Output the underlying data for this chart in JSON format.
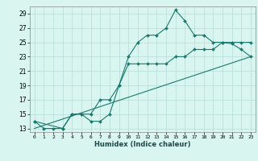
{
  "xlabel": "Humidex (Indice chaleur)",
  "background_color": "#d8f5f0",
  "grid_color": "#b8dcd8",
  "line_color": "#1a7a6e",
  "xlim": [
    -0.5,
    23.5
  ],
  "ylim": [
    12.5,
    30.0
  ],
  "yticks": [
    13,
    15,
    17,
    19,
    21,
    23,
    25,
    27,
    29
  ],
  "xticks": [
    0,
    1,
    2,
    3,
    4,
    5,
    6,
    7,
    8,
    9,
    10,
    11,
    12,
    13,
    14,
    15,
    16,
    17,
    18,
    19,
    20,
    21,
    22,
    23
  ],
  "line1_x": [
    0,
    1,
    2,
    3,
    4,
    5,
    6,
    7,
    8,
    9,
    10,
    11,
    12,
    13,
    14,
    15,
    16,
    17,
    18,
    19,
    20,
    21,
    22,
    23
  ],
  "line1_y": [
    14,
    13,
    13,
    13,
    15,
    15,
    14,
    14,
    15,
    19,
    23,
    25,
    26,
    26,
    27,
    29.5,
    28,
    26,
    26,
    25,
    25,
    24.8,
    24,
    23
  ],
  "line2_x": [
    0,
    3,
    4,
    5,
    6,
    7,
    8,
    9,
    10,
    11,
    12,
    13,
    14,
    15,
    16,
    17,
    18,
    19,
    20,
    21,
    22,
    23
  ],
  "line2_y": [
    14,
    13,
    15,
    15,
    15,
    17,
    17,
    19,
    22,
    22,
    22,
    22,
    22,
    23,
    23,
    24,
    24,
    24,
    25,
    25,
    25,
    25
  ],
  "line3_x": [
    0,
    23
  ],
  "line3_y": [
    13,
    23
  ]
}
